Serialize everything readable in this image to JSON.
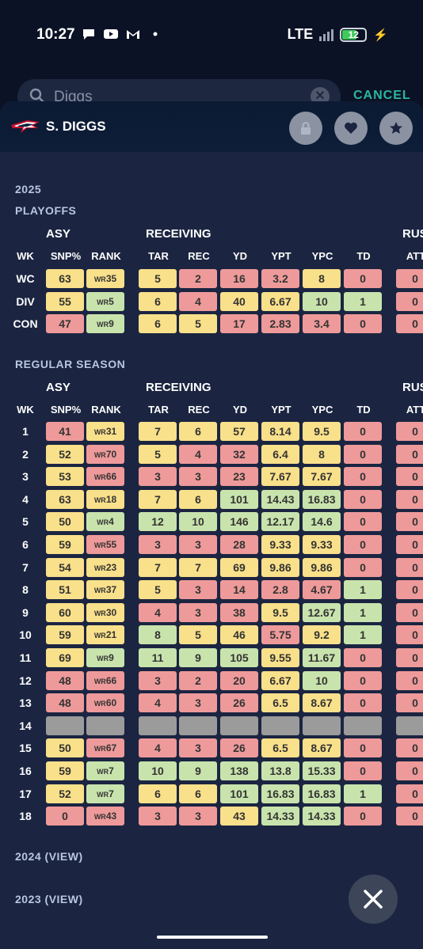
{
  "status": {
    "time": "10:27",
    "network": "LTE",
    "battery": "12"
  },
  "search": {
    "query": "Diggs",
    "cancel_label": "CANCEL"
  },
  "header": {
    "player_name": "S. DIGGS"
  },
  "season": {
    "year": "2025"
  },
  "playoffs": {
    "title": "PLAYOFFS",
    "rows": [
      {
        "wk": "WC",
        "cells": [
          [
            "63",
            "y"
          ],
          [
            "WR|35",
            "y"
          ],
          [
            "5",
            "y"
          ],
          [
            "2",
            "r"
          ],
          [
            "16",
            "r"
          ],
          [
            "3.2",
            "r"
          ],
          [
            "8",
            "y"
          ],
          [
            "0",
            "r"
          ],
          [
            "0",
            "r"
          ]
        ]
      },
      {
        "wk": "DIV",
        "cells": [
          [
            "55",
            "y"
          ],
          [
            "WR|5",
            "g"
          ],
          [
            "6",
            "y"
          ],
          [
            "4",
            "r"
          ],
          [
            "40",
            "y"
          ],
          [
            "6.67",
            "y"
          ],
          [
            "10",
            "g"
          ],
          [
            "1",
            "g"
          ],
          [
            "0",
            "r"
          ]
        ]
      },
      {
        "wk": "CON",
        "cells": [
          [
            "47",
            "r"
          ],
          [
            "WR|9",
            "g"
          ],
          [
            "6",
            "y"
          ],
          [
            "5",
            "y"
          ],
          [
            "17",
            "r"
          ],
          [
            "2.83",
            "r"
          ],
          [
            "3.4",
            "r"
          ],
          [
            "0",
            "r"
          ],
          [
            "0",
            "r"
          ]
        ]
      }
    ]
  },
  "regular": {
    "title": "REGULAR SEASON",
    "rows": [
      {
        "wk": "1",
        "cells": [
          [
            "41",
            "r"
          ],
          [
            "WR|31",
            "y"
          ],
          [
            "7",
            "y"
          ],
          [
            "6",
            "y"
          ],
          [
            "57",
            "y"
          ],
          [
            "8.14",
            "y"
          ],
          [
            "9.5",
            "y"
          ],
          [
            "0",
            "r"
          ],
          [
            "0",
            "r"
          ]
        ]
      },
      {
        "wk": "2",
        "cells": [
          [
            "52",
            "y"
          ],
          [
            "WR|70",
            "r"
          ],
          [
            "5",
            "y"
          ],
          [
            "4",
            "r"
          ],
          [
            "32",
            "r"
          ],
          [
            "6.4",
            "y"
          ],
          [
            "8",
            "y"
          ],
          [
            "0",
            "r"
          ],
          [
            "0",
            "r"
          ]
        ]
      },
      {
        "wk": "3",
        "cells": [
          [
            "53",
            "y"
          ],
          [
            "WR|66",
            "r"
          ],
          [
            "3",
            "r"
          ],
          [
            "3",
            "r"
          ],
          [
            "23",
            "r"
          ],
          [
            "7.67",
            "y"
          ],
          [
            "7.67",
            "y"
          ],
          [
            "0",
            "r"
          ],
          [
            "0",
            "r"
          ]
        ]
      },
      {
        "wk": "4",
        "cells": [
          [
            "63",
            "y"
          ],
          [
            "WR|18",
            "y"
          ],
          [
            "7",
            "y"
          ],
          [
            "6",
            "y"
          ],
          [
            "101",
            "g"
          ],
          [
            "14.43",
            "g"
          ],
          [
            "16.83",
            "g"
          ],
          [
            "0",
            "r"
          ],
          [
            "0",
            "r"
          ]
        ]
      },
      {
        "wk": "5",
        "cells": [
          [
            "50",
            "y"
          ],
          [
            "WR|4",
            "g"
          ],
          [
            "12",
            "g"
          ],
          [
            "10",
            "g"
          ],
          [
            "146",
            "g"
          ],
          [
            "12.17",
            "g"
          ],
          [
            "14.6",
            "g"
          ],
          [
            "0",
            "r"
          ],
          [
            "0",
            "r"
          ]
        ]
      },
      {
        "wk": "6",
        "cells": [
          [
            "59",
            "y"
          ],
          [
            "WR|55",
            "r"
          ],
          [
            "3",
            "r"
          ],
          [
            "3",
            "r"
          ],
          [
            "28",
            "r"
          ],
          [
            "9.33",
            "y"
          ],
          [
            "9.33",
            "y"
          ],
          [
            "0",
            "r"
          ],
          [
            "0",
            "r"
          ]
        ]
      },
      {
        "wk": "7",
        "cells": [
          [
            "54",
            "y"
          ],
          [
            "WR|23",
            "y"
          ],
          [
            "7",
            "y"
          ],
          [
            "7",
            "y"
          ],
          [
            "69",
            "y"
          ],
          [
            "9.86",
            "y"
          ],
          [
            "9.86",
            "y"
          ],
          [
            "0",
            "r"
          ],
          [
            "0",
            "r"
          ]
        ]
      },
      {
        "wk": "8",
        "cells": [
          [
            "51",
            "y"
          ],
          [
            "WR|37",
            "y"
          ],
          [
            "5",
            "y"
          ],
          [
            "3",
            "r"
          ],
          [
            "14",
            "r"
          ],
          [
            "2.8",
            "r"
          ],
          [
            "4.67",
            "r"
          ],
          [
            "1",
            "g"
          ],
          [
            "0",
            "r"
          ]
        ]
      },
      {
        "wk": "9",
        "cells": [
          [
            "60",
            "y"
          ],
          [
            "WR|30",
            "y"
          ],
          [
            "4",
            "r"
          ],
          [
            "3",
            "r"
          ],
          [
            "38",
            "r"
          ],
          [
            "9.5",
            "y"
          ],
          [
            "12.67",
            "g"
          ],
          [
            "1",
            "g"
          ],
          [
            "0",
            "r"
          ]
        ]
      },
      {
        "wk": "10",
        "cells": [
          [
            "59",
            "y"
          ],
          [
            "WR|21",
            "y"
          ],
          [
            "8",
            "g"
          ],
          [
            "5",
            "y"
          ],
          [
            "46",
            "y"
          ],
          [
            "5.75",
            "r"
          ],
          [
            "9.2",
            "y"
          ],
          [
            "1",
            "g"
          ],
          [
            "0",
            "r"
          ]
        ]
      },
      {
        "wk": "11",
        "cells": [
          [
            "69",
            "y"
          ],
          [
            "WR|9",
            "g"
          ],
          [
            "11",
            "g"
          ],
          [
            "9",
            "g"
          ],
          [
            "105",
            "g"
          ],
          [
            "9.55",
            "y"
          ],
          [
            "11.67",
            "g"
          ],
          [
            "0",
            "r"
          ],
          [
            "0",
            "r"
          ]
        ]
      },
      {
        "wk": "12",
        "cells": [
          [
            "48",
            "r"
          ],
          [
            "WR|66",
            "r"
          ],
          [
            "3",
            "r"
          ],
          [
            "2",
            "r"
          ],
          [
            "20",
            "r"
          ],
          [
            "6.67",
            "y"
          ],
          [
            "10",
            "g"
          ],
          [
            "0",
            "r"
          ],
          [
            "0",
            "r"
          ]
        ]
      },
      {
        "wk": "13",
        "cells": [
          [
            "48",
            "r"
          ],
          [
            "WR|60",
            "r"
          ],
          [
            "4",
            "r"
          ],
          [
            "3",
            "r"
          ],
          [
            "26",
            "r"
          ],
          [
            "6.5",
            "y"
          ],
          [
            "8.67",
            "y"
          ],
          [
            "0",
            "r"
          ],
          [
            "0",
            "r"
          ]
        ]
      },
      {
        "wk": "14",
        "cells": [
          [
            "",
            "n"
          ],
          [
            "",
            "n"
          ],
          [
            "",
            "n"
          ],
          [
            "",
            "n"
          ],
          [
            "",
            "n"
          ],
          [
            "",
            "n"
          ],
          [
            "",
            "n"
          ],
          [
            "",
            "n"
          ],
          [
            "",
            "n"
          ]
        ]
      },
      {
        "wk": "15",
        "cells": [
          [
            "50",
            "y"
          ],
          [
            "WR|67",
            "r"
          ],
          [
            "4",
            "r"
          ],
          [
            "3",
            "r"
          ],
          [
            "26",
            "r"
          ],
          [
            "6.5",
            "y"
          ],
          [
            "8.67",
            "y"
          ],
          [
            "0",
            "r"
          ],
          [
            "0",
            "r"
          ]
        ]
      },
      {
        "wk": "16",
        "cells": [
          [
            "59",
            "y"
          ],
          [
            "WR|7",
            "g"
          ],
          [
            "10",
            "g"
          ],
          [
            "9",
            "g"
          ],
          [
            "138",
            "g"
          ],
          [
            "13.8",
            "g"
          ],
          [
            "15.33",
            "g"
          ],
          [
            "0",
            "r"
          ],
          [
            "0",
            "r"
          ]
        ]
      },
      {
        "wk": "17",
        "cells": [
          [
            "52",
            "y"
          ],
          [
            "WR|7",
            "g"
          ],
          [
            "6",
            "y"
          ],
          [
            "6",
            "y"
          ],
          [
            "101",
            "g"
          ],
          [
            "16.83",
            "g"
          ],
          [
            "16.83",
            "g"
          ],
          [
            "1",
            "g"
          ],
          [
            "0",
            "r"
          ]
        ]
      },
      {
        "wk": "18",
        "cells": [
          [
            "0",
            "r"
          ],
          [
            "WR|43",
            "r"
          ],
          [
            "3",
            "r"
          ],
          [
            "3",
            "r"
          ],
          [
            "43",
            "y"
          ],
          [
            "14.33",
            "g"
          ],
          [
            "14.33",
            "g"
          ],
          [
            "0",
            "r"
          ],
          [
            "0",
            "r"
          ]
        ]
      }
    ]
  },
  "table_headers": {
    "asy_group": "ASY",
    "receiving_group": "RECEIVING",
    "rushing_group": "RUS",
    "wk": "WK",
    "columns": [
      "SNP%",
      "RANK",
      "TAR",
      "REC",
      "YD",
      "YPT",
      "YPC",
      "TD",
      "ATT"
    ]
  },
  "colors": {
    "yellow": "#f9e08a",
    "red": "#ee9a9a",
    "green": "#c9e3ad",
    "none": "#9b9b9b"
  },
  "view_links": [
    "2024 (VIEW)",
    "2023 (VIEW)"
  ]
}
